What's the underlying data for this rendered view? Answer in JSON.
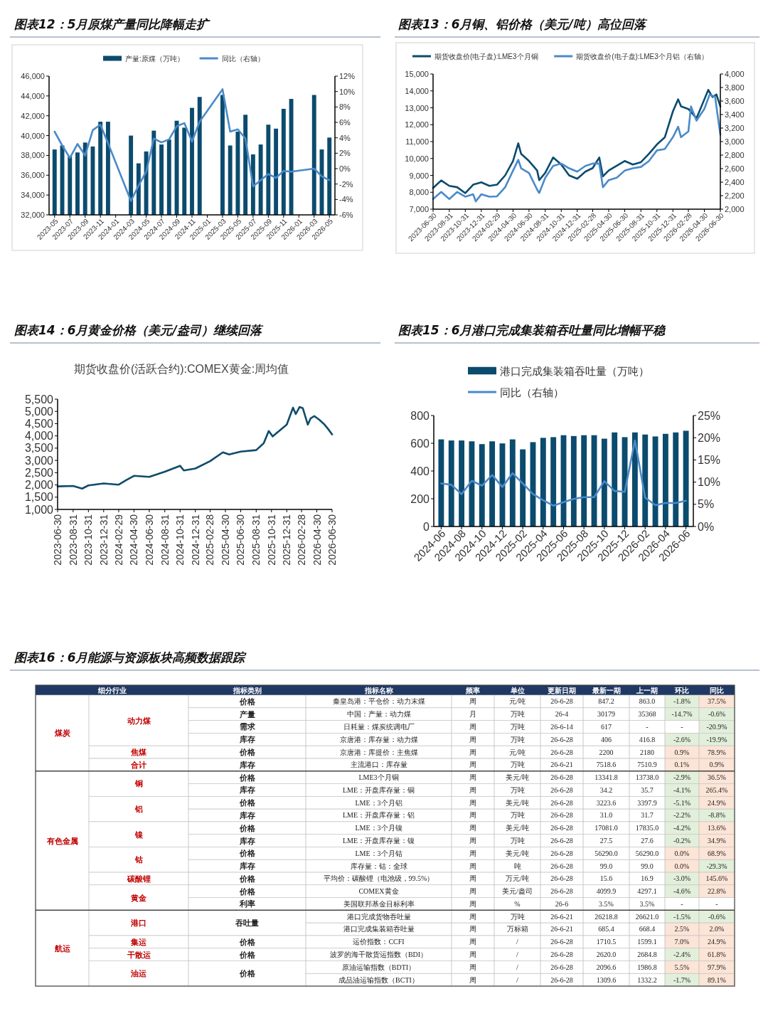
{
  "chart_data": [
    {
      "type": "bar",
      "title": "图表12：5月原煤产量同比降幅走扩",
      "legend": "top",
      "categories": [
        "2023-05",
        null,
        "2023-07",
        null,
        "2023-09",
        null,
        "2023-11",
        null,
        "2024-01",
        null,
        "2024-03",
        null,
        "2024-05",
        null,
        "2024-07",
        null,
        "2024-09",
        null,
        "2024-11",
        null,
        "2025-01",
        null,
        "2025-03",
        null,
        "2025-05",
        null,
        "2025-07",
        null,
        "2025-09",
        null,
        "2025-11",
        null,
        "2026-01",
        null,
        "2026-03",
        null,
        "2026-05"
      ],
      "series": [
        {
          "name": "产量:原煤（万吨）",
          "type": "bar",
          "color": "#0b4b6e",
          "values": [
            38600,
            39000,
            37900,
            38300,
            39300,
            38900,
            41400,
            41400,
            null,
            null,
            40000,
            37200,
            38400,
            40500,
            39100,
            39600,
            41500,
            40800,
            42800,
            43900,
            null,
            null,
            44100,
            39000,
            40400,
            42100,
            38100,
            39100,
            41100,
            40700,
            42700,
            43700,
            null,
            null,
            44100,
            38600,
            39800
          ]
        },
        {
          "name": "同比（右轴）",
          "type": "line",
          "axis": "y2",
          "color": "#4a8ac9",
          "values": [
            4.8,
            3.0,
            1.4,
            3.2,
            1.7,
            5.0,
            5.7,
            3.3,
            null,
            null,
            -4.2,
            -2.2,
            -0.4,
            3.9,
            3.4,
            3.8,
            5.5,
            5.9,
            3.5,
            6.1,
            null,
            null,
            10.3,
            4.8,
            5.1,
            3.9,
            -2.3,
            -1.5,
            -0.7,
            -1.2,
            -0.3,
            -0.4,
            null,
            null,
            0.0,
            -1.0,
            -1.5
          ]
        }
      ],
      "ylim": [
        32000,
        46000
      ],
      "yticks": [
        {
          "value": 32000,
          "label": "32,000"
        },
        {
          "value": 34000,
          "label": "34,000"
        },
        {
          "value": 36000,
          "label": "36,000"
        },
        {
          "value": 38000,
          "label": "38,000"
        },
        {
          "value": 40000,
          "label": "40,000"
        },
        {
          "value": 42000,
          "label": "42,000"
        },
        {
          "value": 44000,
          "label": "44,000"
        },
        {
          "value": 46000,
          "label": "46,000"
        }
      ],
      "y2lim": [
        -6,
        12
      ],
      "y2ticks": [
        {
          "value": -6,
          "label": "-6%"
        },
        {
          "value": -4,
          "label": "-4%"
        },
        {
          "value": -2,
          "label": "-2%"
        },
        {
          "value": 0,
          "label": "0%"
        },
        {
          "value": 2,
          "label": "2%"
        },
        {
          "value": 4,
          "label": "4%"
        },
        {
          "value": 6,
          "label": "6%"
        },
        {
          "value": 8,
          "label": "8%"
        },
        {
          "value": 10,
          "label": "10%"
        },
        {
          "value": 12,
          "label": "12%"
        }
      ]
    },
    {
      "type": "line",
      "title": "图表13：6月铜、铝价格（美元/吨）高位回落",
      "legend": "top",
      "series": [
        {
          "name": "期货收盘价(电子盘):LME3个月铜",
          "color": "#0b4b6e",
          "x": [
            "2023-06-30",
            "2023-07-31",
            "2023-08-31",
            "2023-09-30",
            "2023-10-31",
            "2023-11-30",
            "2023-12-31",
            "2024-01-31",
            "2024-02-29",
            "2024-03-31",
            "2024-04-30",
            "2024-05-20",
            "2024-05-31",
            "2024-06-30",
            "2024-07-31",
            "2024-08-08",
            "2024-08-31",
            "2024-09-30",
            "2024-10-31",
            "2024-11-30",
            "2024-12-31",
            "2025-01-31",
            "2025-02-28",
            "2025-03-25",
            "2025-04-08",
            "2025-04-30",
            "2025-05-31",
            "2025-06-30",
            "2025-07-31",
            "2025-08-31",
            "2025-09-30",
            "2025-10-31",
            "2025-11-30",
            "2025-12-31",
            "2026-01-20",
            "2026-01-31",
            "2026-02-28",
            "2026-03-31",
            "2026-04-30",
            "2026-05-15",
            "2026-05-31",
            "2026-06-15",
            "2026-06-30"
          ],
          "values": [
            8250,
            8700,
            8380,
            8300,
            7950,
            8450,
            8590,
            8380,
            8450,
            9000,
            9850,
            10900,
            10270,
            9850,
            9290,
            8720,
            9150,
            10060,
            9640,
            9000,
            8800,
            9220,
            9430,
            10060,
            8940,
            9290,
            9570,
            9850,
            9640,
            9780,
            10270,
            10830,
            11250,
            12790,
            13500,
            13080,
            12930,
            12380,
            13500,
            14060,
            13640,
            13790,
            13080
          ]
        },
        {
          "name": "期货收盘价(电子盘):LME3个月铝（右轴）",
          "axis": "y2",
          "color": "#4a8ac9",
          "x": [
            "2023-06-30",
            "2023-07-31",
            "2023-08-31",
            "2023-09-30",
            "2023-10-31",
            "2023-11-30",
            "2023-12-10",
            "2023-12-31",
            "2024-01-31",
            "2024-02-29",
            "2024-03-31",
            "2024-04-30",
            "2024-05-20",
            "2024-05-31",
            "2024-06-30",
            "2024-07-31",
            "2024-08-08",
            "2024-08-31",
            "2024-09-30",
            "2024-10-31",
            "2024-11-30",
            "2024-12-31",
            "2025-01-31",
            "2025-02-28",
            "2025-03-25",
            "2025-04-08",
            "2025-04-30",
            "2025-05-31",
            "2025-06-30",
            "2025-07-31",
            "2025-08-31",
            "2025-09-30",
            "2025-10-31",
            "2025-11-30",
            "2025-12-31",
            "2026-01-20",
            "2026-01-31",
            "2026-02-28",
            "2026-03-10",
            "2026-03-31",
            "2026-04-30",
            "2026-05-20",
            "2026-06-10",
            "2026-06-20",
            "2026-06-30"
          ],
          "values": [
            2150,
            2255,
            2150,
            2255,
            2185,
            2220,
            2115,
            2220,
            2185,
            2190,
            2325,
            2570,
            2730,
            2605,
            2535,
            2290,
            2240,
            2465,
            2640,
            2675,
            2605,
            2555,
            2640,
            2675,
            2675,
            2325,
            2430,
            2465,
            2570,
            2605,
            2625,
            2710,
            2870,
            2890,
            3065,
            3220,
            3065,
            3150,
            3520,
            3310,
            3485,
            3695,
            3660,
            3380,
            3100
          ]
        }
      ],
      "xlim": [
        "2023-06-30",
        "2026-06-30"
      ],
      "xticks": [
        "2023-06-30",
        "2023-08-31",
        "2023-10-31",
        "2023-12-31",
        "2024-02-29",
        "2024-04-30",
        "2024-06-30",
        "2024-08-31",
        "2024-10-31",
        "2024-12-31",
        "2025-02-28",
        "2025-04-30",
        "2025-06-30",
        "2025-08-31",
        "2025-10-31",
        "2025-12-31",
        "2026-02-28",
        "2026-04-30",
        "2026-06-30"
      ],
      "ylim": [
        7000,
        15000
      ],
      "yticks": [
        {
          "value": 7000,
          "label": "7,000"
        },
        {
          "value": 8000,
          "label": "8,000"
        },
        {
          "value": 9000,
          "label": "9,000"
        },
        {
          "value": 10000,
          "label": "10,000"
        },
        {
          "value": 11000,
          "label": "11,000"
        },
        {
          "value": 12000,
          "label": "12,000"
        },
        {
          "value": 13000,
          "label": "13,000"
        },
        {
          "value": 14000,
          "label": "14,000"
        },
        {
          "value": 15000,
          "label": "15,000"
        }
      ],
      "y2lim": [
        2000,
        4000
      ],
      "y2ticks": [
        {
          "value": 2000,
          "label": "2,000"
        },
        {
          "value": 2200,
          "label": "2,200"
        },
        {
          "value": 2400,
          "label": "2,400"
        },
        {
          "value": 2600,
          "label": "2,600"
        },
        {
          "value": 2800,
          "label": "2,800"
        },
        {
          "value": 3000,
          "label": "3,000"
        },
        {
          "value": 3200,
          "label": "3,200"
        },
        {
          "value": 3400,
          "label": "3,400"
        },
        {
          "value": 3600,
          "label": "3,600"
        },
        {
          "value": 3800,
          "label": "3,800"
        },
        {
          "value": 4000,
          "label": "4,000"
        }
      ]
    },
    {
      "type": "line",
      "title": "图表14：6月黄金价格（美元/盎司）继续回落",
      "subtitle": "期货收盘价(活跃合约):COMEX黄金:周均值",
      "x": [
        "2023-06-30",
        "2023-08-31",
        "2023-10-06",
        "2023-10-31",
        "2023-12-31",
        "2024-02-29",
        "2024-03-31",
        "2024-04-30",
        "2024-06-30",
        "2024-08-31",
        "2024-10-31",
        "2024-11-15",
        "2024-12-31",
        "2025-02-28",
        "2025-04-20",
        "2025-05-15",
        "2025-06-30",
        "2025-08-31",
        "2025-09-30",
        "2025-10-20",
        "2025-11-05",
        "2025-12-31",
        "2026-01-25",
        "2026-02-05",
        "2026-02-20",
        "2026-03-05",
        "2026-03-25",
        "2026-04-05",
        "2026-04-20",
        "2026-05-10",
        "2026-05-31",
        "2026-06-15",
        "2026-06-30"
      ],
      "series": [
        {
          "color": "#0f4c6b",
          "values": [
            1940,
            1960,
            1850,
            1980,
            2060,
            2010,
            2200,
            2370,
            2330,
            2540,
            2780,
            2590,
            2670,
            2970,
            3330,
            3240,
            3360,
            3420,
            3700,
            4200,
            3980,
            4460,
            5150,
            4890,
            5180,
            5130,
            4460,
            4710,
            4810,
            4660,
            4460,
            4270,
            4060
          ]
        }
      ],
      "xlim": [
        "2023-06-30",
        "2026-06-30"
      ],
      "xticks": [
        "2023-06-30",
        "2023-08-31",
        "2023-10-31",
        "2023-12-31",
        "2024-02-29",
        "2024-04-30",
        "2024-06-30",
        "2024-08-31",
        "2024-10-31",
        "2024-12-31",
        "2025-02-28",
        "2025-04-30",
        "2025-06-30",
        "2025-08-31",
        "2025-10-31",
        "2025-12-31",
        "2026-02-28",
        "2026-04-30",
        "2026-06-30"
      ],
      "ylim": [
        1000,
        5500
      ],
      "yticks": [
        {
          "value": 1000,
          "label": "1,000"
        },
        {
          "value": 1500,
          "label": "1,500"
        },
        {
          "value": 2000,
          "label": "2,000"
        },
        {
          "value": 2500,
          "label": "2,500"
        },
        {
          "value": 3000,
          "label": "3,000"
        },
        {
          "value": 3500,
          "label": "3,500"
        },
        {
          "value": 4000,
          "label": "4,000"
        },
        {
          "value": 4500,
          "label": "4,500"
        },
        {
          "value": 5000,
          "label": "5,000"
        },
        {
          "value": 5500,
          "label": "5,500"
        }
      ]
    },
    {
      "type": "bar",
      "title": "图表15：6月港口完成集装箱吞吐量同比增幅平稳",
      "legend": "top",
      "categories": [
        "2024-06",
        null,
        "2024-08",
        null,
        "2024-10",
        null,
        "2024-12",
        null,
        "2025-02",
        null,
        "2025-04",
        null,
        "2025-06",
        null,
        "2025-08",
        null,
        "2025-10",
        null,
        "2025-12",
        null,
        "2026-02",
        null,
        "2026-04",
        null,
        "2026-06"
      ],
      "series": [
        {
          "name": "港口完成集装箱吞吐量（万吨）",
          "type": "bar",
          "color": "#0b4b6e",
          "values": [
            628,
            620,
            620,
            614,
            594,
            614,
            599,
            628,
            556,
            608,
            639,
            644,
            658,
            652,
            658,
            658,
            633,
            678,
            644,
            678,
            663,
            649,
            668,
            678,
            690
          ]
        },
        {
          "name": "同比（右轴）",
          "type": "line",
          "axis": "y2",
          "color": "#4a8ac9",
          "values": [
            9.7,
            9.4,
            7.3,
            10.3,
            9.2,
            11.6,
            8.9,
            12.0,
            9.7,
            7.3,
            5.9,
            4.7,
            5.5,
            6.2,
            6.6,
            6.6,
            10.2,
            8.0,
            7.8,
            19.4,
            6.5,
            4.8,
            5.3,
            5.3,
            5.8
          ]
        }
      ],
      "ylim": [
        0,
        800
      ],
      "yticks": [
        0,
        200,
        400,
        600,
        800
      ],
      "y2lim": [
        0,
        25
      ],
      "y2ticks": [
        {
          "value": 0,
          "label": "0%"
        },
        {
          "value": 5,
          "label": "5%"
        },
        {
          "value": 10,
          "label": "10%"
        },
        {
          "value": 15,
          "label": "15%"
        },
        {
          "value": 20,
          "label": "20%"
        },
        {
          "value": 25,
          "label": "25%"
        }
      ]
    },
    {
      "type": "other",
      "title": "图表16：6月能源与资源板块高频数据跟踪",
      "categories": [
        "细分行业",
        null,
        "指标类别",
        "指标名称",
        "频率",
        "单位",
        "更新日期",
        "最新一期",
        "上一期",
        "环比",
        "同比"
      ],
      "cell_labels": [
        [
          "煤炭",
          "动力煤",
          "价格",
          "秦皇岛港：平仓价：动力末煤",
          "周",
          "元/吨",
          "26-6-28",
          "847.2",
          "863.0",
          "-1.8%",
          "37.5%"
        ],
        [
          null,
          null,
          "产量",
          "中国：产量：动力煤",
          "月",
          "万吨",
          "26-4",
          "30179",
          "35368",
          "-14.7%",
          "-0.6%"
        ],
        [
          null,
          null,
          "需求",
          "日耗量：煤炭统调电厂",
          "周",
          "万吨",
          "26-6-14",
          "617",
          "-",
          "-",
          "-20.9%"
        ],
        [
          null,
          null,
          "库存",
          "京唐港：库存量：动力煤",
          "周",
          "万吨",
          "26-6-28",
          "406",
          "416.8",
          "-2.6%",
          "-19.9%"
        ],
        [
          null,
          "焦煤",
          "价格",
          "京唐港：库提价：主焦煤",
          "周",
          "元/吨",
          "26-6-28",
          "2200",
          "2180",
          "0.9%",
          "78.9%"
        ],
        [
          null,
          "合计",
          "库存",
          "主流港口：库存量",
          "周",
          "万吨",
          "26-6-21",
          "7518.6",
          "7510.9",
          "0.1%",
          "0.9%"
        ],
        [
          "有色金属",
          "铜",
          "价格",
          "LME3个月铜",
          "周",
          "美元/吨",
          "26-6-28",
          "13341.8",
          "13738.0",
          "-2.9%",
          "36.5%"
        ],
        [
          null,
          null,
          "库存",
          "LME：开盘库存量：铜",
          "周",
          "万吨",
          "26-6-28",
          "34.2",
          "35.7",
          "-4.1%",
          "265.4%"
        ],
        [
          null,
          "铝",
          "价格",
          "LME：3个月铝",
          "周",
          "美元/吨",
          "26-6-28",
          "3223.6",
          "3397.9",
          "-5.1%",
          "24.9%"
        ],
        [
          null,
          null,
          "库存",
          "LME：开盘库存量：铝",
          "周",
          "万吨",
          "26-6-28",
          "31.0",
          "31.7",
          "-2.2%",
          "-8.8%"
        ],
        [
          null,
          "镍",
          "价格",
          "LME：3个月镍",
          "周",
          "美元/吨",
          "26-6-28",
          "17081.0",
          "17835.0",
          "-4.2%",
          "13.6%"
        ],
        [
          null,
          null,
          "库存",
          "LME：开盘库存量：镍",
          "周",
          "万吨",
          "26-6-28",
          "27.5",
          "27.6",
          "-0.2%",
          "34.9%"
        ],
        [
          null,
          "钴",
          "价格",
          "LME：3个月钴",
          "周",
          "美元/吨",
          "26-6-28",
          "56290.0",
          "56290.0",
          "0.0%",
          "68.9%"
        ],
        [
          null,
          null,
          "库存",
          "库存量：钴：全球",
          "周",
          "吨",
          "26-6-28",
          "99.0",
          "99.0",
          "0.0%",
          "-29.3%"
        ],
        [
          null,
          "碳酸锂",
          "价格",
          "平均价：碳酸锂（电池级，99.5%）",
          "周",
          "万元/吨",
          "26-6-28",
          "15.6",
          "16.9",
          "-3.0%",
          "145.6%"
        ],
        [
          null,
          "黄金",
          "价格",
          "COMEX黄金",
          "周",
          "美元/盎司",
          "26-6-28",
          "4099.9",
          "4297.1",
          "-4.6%",
          "22.8%"
        ],
        [
          null,
          null,
          "利率",
          "美国联邦基金目标利率",
          "周",
          "%",
          "26-6",
          "3.5%",
          "3.5%",
          "-",
          "-"
        ],
        [
          "航运",
          "港口",
          "吞吐量",
          "港口完成货物吞吐量",
          "周",
          "万吨",
          "26-6-21",
          "26218.8",
          "26621.0",
          "-1.5%",
          "-0.6%"
        ],
        [
          null,
          null,
          null,
          "港口完成集装箱吞吐量",
          "周",
          "万标箱",
          "26-6-21",
          "685.4",
          "668.4",
          "2.5%",
          "2.0%"
        ],
        [
          null,
          "集运",
          "价格",
          "运价指数：CCFI",
          "周",
          "/",
          "26-6-28",
          "1710.5",
          "1599.1",
          "7.0%",
          "24.9%"
        ],
        [
          null,
          "干散运",
          "价格",
          "波罗的海干散货运指数（BDI）",
          "周",
          "/",
          "26-6-28",
          "2620.0",
          "2684.8",
          "-2.4%",
          "61.8%"
        ],
        [
          null,
          "油运",
          "价格",
          "原油运输指数（BDTI）",
          "周",
          "/",
          "26-6-28",
          "2096.6",
          "1986.8",
          "5.5%",
          "97.9%"
        ],
        [
          null,
          null,
          null,
          "成品油运输指数（BCTI）",
          "周",
          "/",
          "26-6-28",
          "1309.6",
          "1332.2",
          "-1.7%",
          "89.1%"
        ]
      ],
      "colors": [
        [
          "#e2efda",
          "#fce4d6"
        ],
        [
          "#e2efda",
          "#e2efda"
        ],
        [
          null,
          "#e2efda"
        ],
        [
          "#e2efda",
          "#e2efda"
        ],
        [
          "#fce4d6",
          "#fce4d6"
        ],
        [
          "#fce4d6",
          "#fce4d6"
        ],
        [
          "#e2efda",
          "#fce4d6"
        ],
        [
          "#e2efda",
          "#fce4d6"
        ],
        [
          "#e2efda",
          "#fce4d6"
        ],
        [
          "#e2efda",
          "#e2efda"
        ],
        [
          "#e2efda",
          "#fce4d6"
        ],
        [
          "#e2efda",
          "#fce4d6"
        ],
        [
          "#fce4d6",
          "#fce4d6"
        ],
        [
          "#fce4d6",
          "#e2efda"
        ],
        [
          "#e2efda",
          "#fce4d6"
        ],
        [
          "#e2efda",
          "#fce4d6"
        ],
        [
          null,
          null
        ],
        [
          "#e2efda",
          "#e2efda"
        ],
        [
          "#fce4d6",
          "#fce4d6"
        ],
        [
          "#fce4d6",
          "#fce4d6"
        ],
        [
          "#e2efda",
          "#fce4d6"
        ],
        [
          "#fce4d6",
          "#fce4d6"
        ],
        [
          "#e2efda",
          "#fce4d6"
        ]
      ]
    }
  ]
}
